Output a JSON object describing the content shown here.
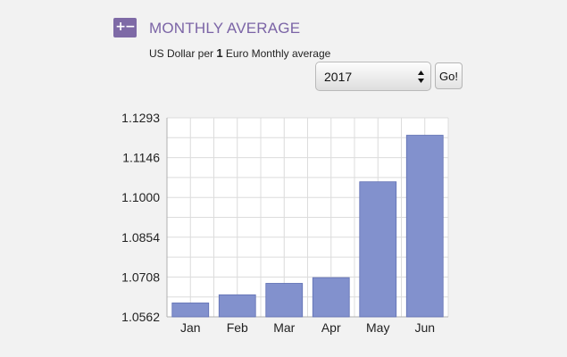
{
  "header": {
    "icon_glyph": "+−",
    "icon_color": "#7e6aa6",
    "title": "MONTHLY AVERAGE"
  },
  "subtitle": {
    "prefix": "US Dollar per ",
    "amount": "1",
    "suffix": " Euro Monthly average"
  },
  "controls": {
    "year_selected": "2017",
    "go_label": "Go!"
  },
  "chart_data": {
    "type": "bar",
    "categories": [
      "Jan",
      "Feb",
      "Mar",
      "Apr",
      "May",
      "Jun"
    ],
    "values": [
      1.0613,
      1.0643,
      1.0685,
      1.0706,
      1.1058,
      1.1229
    ],
    "ylim": [
      1.0562,
      1.1293
    ],
    "yticks": [
      "1.1293",
      "1.1146",
      "1.1000",
      "1.0854",
      "1.0708",
      "1.0562"
    ],
    "grid": true,
    "bar_color": "#8291cd",
    "bar_stroke": "#5f6fb3"
  }
}
